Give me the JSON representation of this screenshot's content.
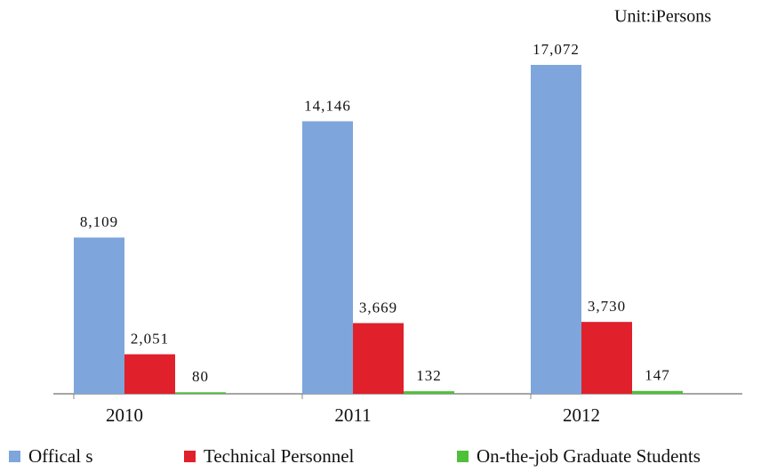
{
  "chart_data": {
    "type": "bar",
    "annotation": "Unit:iPersons",
    "categories": [
      "2010",
      "2011",
      "2012"
    ],
    "series": [
      {
        "name": "Offical s",
        "color": "#7ea6dc",
        "values": [
          8109,
          14146,
          17072
        ],
        "value_labels": [
          "8,109",
          "14,146",
          "17,072"
        ]
      },
      {
        "name": "Technical Personnel",
        "color": "#e0202a",
        "values": [
          2051,
          3669,
          3730
        ],
        "value_labels": [
          "2,051",
          "3,669",
          "3,730"
        ]
      },
      {
        "name": "On-the-job Graduate Students",
        "color": "#4fc03a",
        "values": [
          80,
          132,
          147
        ],
        "value_labels": [
          "80",
          "132",
          "147"
        ]
      }
    ]
  }
}
